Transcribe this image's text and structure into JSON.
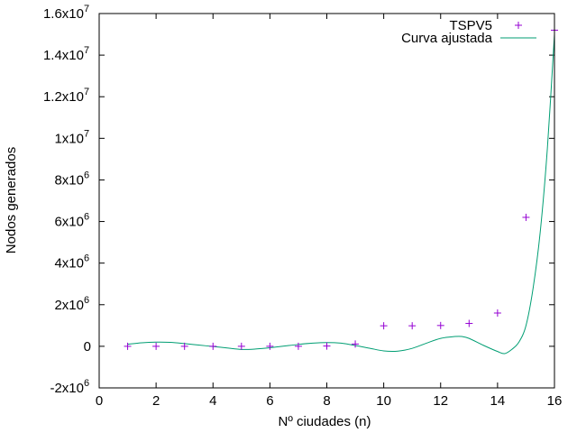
{
  "chart_data": {
    "type": "scatter",
    "xlabel": "Nº ciudades (n)",
    "ylabel": "Nodos generados",
    "xlim": [
      0,
      16
    ],
    "ylim": [
      -2000000,
      16000000
    ],
    "xticks": [
      "0",
      "2",
      "4",
      "6",
      "8",
      "10",
      "12",
      "14",
      "16"
    ],
    "yticks": [
      {
        "base": "-2x10",
        "exp": "6"
      },
      {
        "base": "0",
        "exp": ""
      },
      {
        "base": "2x10",
        "exp": "6"
      },
      {
        "base": "4x10",
        "exp": "6"
      },
      {
        "base": "6x10",
        "exp": "6"
      },
      {
        "base": "8x10",
        "exp": "6"
      },
      {
        "base": "1x10",
        "exp": "7"
      },
      {
        "base": "1.2x10",
        "exp": "7"
      },
      {
        "base": "1.4x10",
        "exp": "7"
      },
      {
        "base": "1.6x10",
        "exp": "7"
      }
    ],
    "legend": "top-right",
    "grid": false,
    "series": [
      {
        "name": "TSPV5",
        "kind": "points",
        "color": "#9400d3",
        "x": [
          1,
          2,
          3,
          4,
          5,
          6,
          7,
          8,
          9,
          10,
          11,
          12,
          13,
          14,
          15,
          16
        ],
        "y": [
          1,
          2,
          5,
          16,
          65,
          326,
          1957,
          13700,
          109601,
          986410,
          986410,
          1000000,
          1100000,
          1600000,
          6200000,
          15200000
        ]
      },
      {
        "name": "Curva ajustada",
        "kind": "line",
        "color": "#009e73",
        "x": [
          1,
          1.5,
          2,
          2.5,
          3,
          3.5,
          4,
          4.5,
          5,
          5.5,
          6,
          6.5,
          7,
          7.5,
          8,
          8.5,
          9,
          9.5,
          10,
          10.5,
          11,
          11.5,
          12,
          12.5,
          12.75,
          13,
          13.5,
          14,
          14.25,
          14.5,
          14.75,
          15,
          15.25,
          15.5,
          15.75,
          16
        ],
        "y": [
          100000,
          170000,
          200000,
          190000,
          130000,
          60000,
          -10000,
          -80000,
          -150000,
          -130000,
          -70000,
          10000,
          90000,
          150000,
          180000,
          150000,
          40000,
          -90000,
          -220000,
          -230000,
          -100000,
          150000,
          380000,
          470000,
          470000,
          380000,
          50000,
          -250000,
          -350000,
          -150000,
          200000,
          1000000,
          2800000,
          5500000,
          9500000,
          15000000
        ]
      }
    ]
  }
}
